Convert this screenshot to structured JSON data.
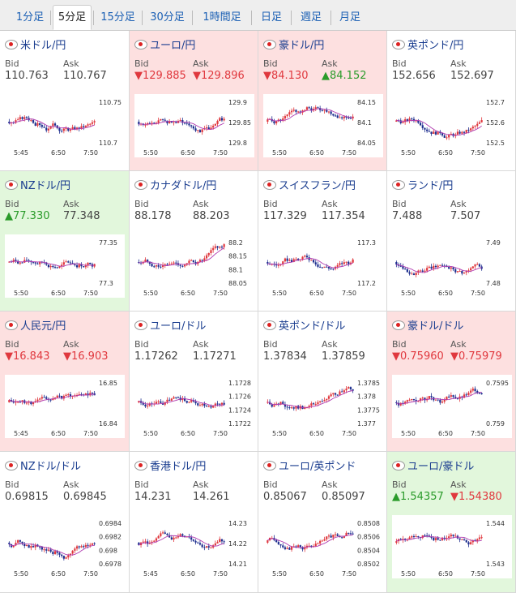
{
  "tabs": [
    {
      "label": "1分足",
      "active": false
    },
    {
      "label": "5分足",
      "active": true
    },
    {
      "label": "15分足",
      "active": false
    },
    {
      "label": "30分足",
      "active": false
    },
    {
      "label": "1時間足",
      "active": false
    },
    {
      "label": "日足",
      "active": false
    },
    {
      "label": "週足",
      "active": false
    },
    {
      "label": "月足",
      "active": false
    }
  ],
  "colors": {
    "up": "#2a9b2a",
    "down": "#e0383e",
    "bull_candle": "#e0383e",
    "bear_candle": "#1f2f8f",
    "ma_line": "#b03ab0",
    "red_bg": "#fde0e0",
    "green_bg": "#e2f7dc"
  },
  "labels": {
    "bid": "Bid",
    "ask": "Ask"
  },
  "pairs": [
    {
      "name": "米ドル/円",
      "bg": "white",
      "bid": "110.763",
      "ask": "110.767",
      "bid_dir": "none",
      "ask_dir": "none",
      "chart": {
        "x_ticks": [
          "5:45",
          "6:50",
          "7:50"
        ],
        "y_ticks": [
          "110.75",
          "110.7"
        ]
      }
    },
    {
      "name": "ユーロ/円",
      "bg": "red",
      "bid": "▼129.885",
      "ask": "▼129.896",
      "bid_dir": "down",
      "ask_dir": "down",
      "chart": {
        "x_ticks": [
          "5:50",
          "6:50",
          "7:50"
        ],
        "y_ticks": [
          "129.9",
          "129.85",
          "129.8"
        ]
      }
    },
    {
      "name": "豪ドル/円",
      "bg": "red",
      "bid": "▼84.130",
      "ask": "▲84.152",
      "bid_dir": "down",
      "ask_dir": "up",
      "chart": {
        "x_ticks": [
          "5:50",
          "6:50",
          "7:50"
        ],
        "y_ticks": [
          "84.15",
          "84.1",
          "84.05"
        ]
      }
    },
    {
      "name": "英ポンド/円",
      "bg": "white",
      "bid": "152.656",
      "ask": "152.697",
      "bid_dir": "none",
      "ask_dir": "none",
      "chart": {
        "x_ticks": [
          "5:50",
          "6:50",
          "7:50"
        ],
        "y_ticks": [
          "152.7",
          "152.6",
          "152.5"
        ]
      }
    },
    {
      "name": "NZドル/円",
      "bg": "green",
      "bid": "▲77.330",
      "ask": "77.348",
      "bid_dir": "up",
      "ask_dir": "none",
      "chart": {
        "x_ticks": [
          "5:50",
          "6:50",
          "7:50"
        ],
        "y_ticks": [
          "77.35",
          "77.3"
        ]
      }
    },
    {
      "name": "カナダドル/円",
      "bg": "white",
      "bid": "88.178",
      "ask": "88.203",
      "bid_dir": "none",
      "ask_dir": "none",
      "chart": {
        "x_ticks": [
          "5:50",
          "6:50",
          "7:50"
        ],
        "y_ticks": [
          "88.2",
          "88.15",
          "88.1",
          "88.05"
        ]
      }
    },
    {
      "name": "スイスフラン/円",
      "bg": "white",
      "bid": "117.329",
      "ask": "117.354",
      "bid_dir": "none",
      "ask_dir": "none",
      "chart": {
        "x_ticks": [
          "5:50",
          "6:50",
          "7:50"
        ],
        "y_ticks": [
          "117.3",
          "117.2"
        ]
      }
    },
    {
      "name": "ランド/円",
      "bg": "white",
      "bid": "7.488",
      "ask": "7.507",
      "bid_dir": "none",
      "ask_dir": "none",
      "chart": {
        "x_ticks": [
          "5:50",
          "6:50",
          "7:50"
        ],
        "y_ticks": [
          "7.49",
          "7.48"
        ]
      }
    },
    {
      "name": "人民元/円",
      "bg": "red",
      "bid": "▼16.843",
      "ask": "▼16.903",
      "bid_dir": "down",
      "ask_dir": "down",
      "chart": {
        "x_ticks": [
          "5:45",
          "6:50",
          "7:50"
        ],
        "y_ticks": [
          "16.85",
          "16.84"
        ]
      }
    },
    {
      "name": "ユーロ/ドル",
      "bg": "white",
      "bid": "1.17262",
      "ask": "1.17271",
      "bid_dir": "none",
      "ask_dir": "none",
      "chart": {
        "x_ticks": [
          "5:50",
          "6:50",
          "7:50"
        ],
        "y_ticks": [
          "1.1728",
          "1.1726",
          "1.1724",
          "1.1722"
        ]
      }
    },
    {
      "name": "英ポンド/ドル",
      "bg": "white",
      "bid": "1.37834",
      "ask": "1.37859",
      "bid_dir": "none",
      "ask_dir": "none",
      "chart": {
        "x_ticks": [
          "5:50",
          "6:50",
          "7:50"
        ],
        "y_ticks": [
          "1.3785",
          "1.378",
          "1.3775",
          "1.377"
        ]
      }
    },
    {
      "name": "豪ドル/ドル",
      "bg": "red",
      "bid": "▼0.75960",
      "ask": "▼0.75979",
      "bid_dir": "down",
      "ask_dir": "down",
      "chart": {
        "x_ticks": [
          "5:50",
          "6:50",
          "7:50"
        ],
        "y_ticks": [
          "0.7595",
          "0.759"
        ]
      }
    },
    {
      "name": "NZドル/ドル",
      "bg": "white",
      "bid": "0.69815",
      "ask": "0.69845",
      "bid_dir": "none",
      "ask_dir": "none",
      "chart": {
        "x_ticks": [
          "5:50",
          "6:50",
          "7:50"
        ],
        "y_ticks": [
          "0.6984",
          "0.6982",
          "0.698",
          "0.6978"
        ]
      }
    },
    {
      "name": "香港ドル/円",
      "bg": "white",
      "bid": "14.231",
      "ask": "14.261",
      "bid_dir": "none",
      "ask_dir": "none",
      "chart": {
        "x_ticks": [
          "5:45",
          "6:50",
          "7:50"
        ],
        "y_ticks": [
          "14.23",
          "14.22",
          "14.21"
        ]
      }
    },
    {
      "name": "ユーロ/英ポンド",
      "bg": "white",
      "bid": "0.85067",
      "ask": "0.85097",
      "bid_dir": "none",
      "ask_dir": "none",
      "chart": {
        "x_ticks": [
          "5:50",
          "6:50",
          "7:50"
        ],
        "y_ticks": [
          "0.8508",
          "0.8506",
          "0.8504",
          "0.8502"
        ]
      }
    },
    {
      "name": "ユーロ/豪ドル",
      "bg": "green",
      "bid": "▲1.54357",
      "ask": "▼1.54380",
      "bid_dir": "up",
      "ask_dir": "down",
      "chart": {
        "x_ticks": [
          "5:50",
          "6:50",
          "7:50"
        ],
        "y_ticks": [
          "1.544",
          "1.543"
        ]
      }
    }
  ]
}
